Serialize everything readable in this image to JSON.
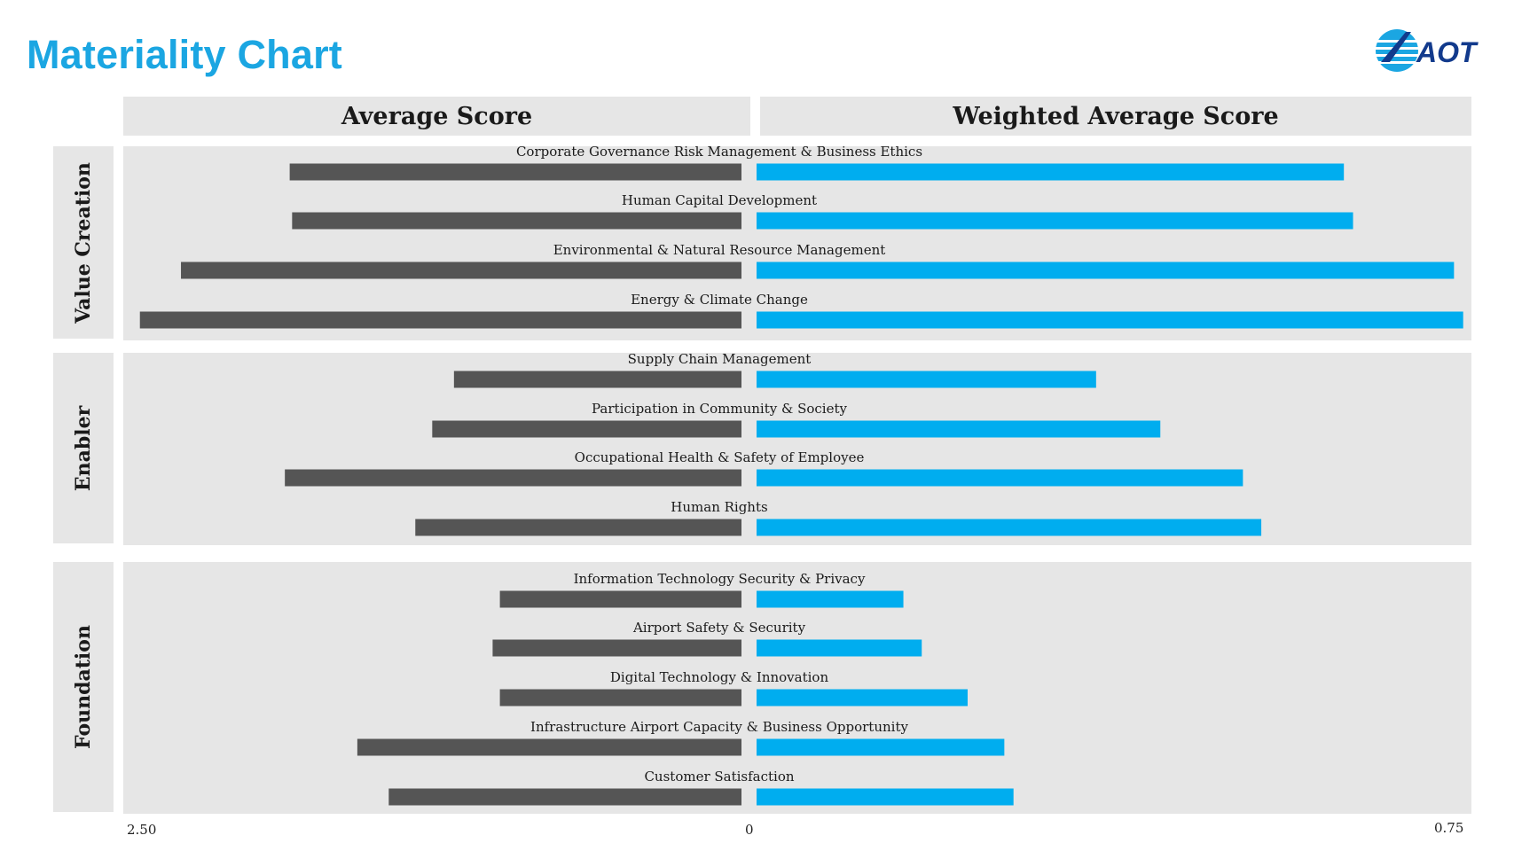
{
  "title": "Materiality Chart",
  "logo_text": "AOT",
  "colors": {
    "title": "#1ba6e2",
    "average_bar": "#555555",
    "weighted_bar": "#00adef",
    "panel_bg": "#e6e6e6"
  },
  "headers": {
    "left": "Average Score",
    "right": "Weighted Average Score"
  },
  "chart_data": {
    "type": "bar",
    "orientation": "horizontal-butterfly",
    "axis_labels": {
      "left_max": "2.50",
      "center": "0",
      "right_max": "0.75"
    },
    "left_range": [
      0,
      2.5
    ],
    "right_range": [
      0,
      0.75
    ],
    "groups": [
      {
        "name": "Value Creation",
        "items": [
          {
            "label": "Corporate Governance Risk Management & Business Ethics",
            "average": 1.87,
            "weighted": 0.64
          },
          {
            "label": "Human Capital Development",
            "average": 1.86,
            "weighted": 0.65
          },
          {
            "label": "Environmental & Natural Resource Management",
            "average": 2.32,
            "weighted": 0.76
          },
          {
            "label": "Energy & Climate Change",
            "average": 2.49,
            "weighted": 0.77
          }
        ]
      },
      {
        "name": "Enabler",
        "items": [
          {
            "label": "Supply Chain Management",
            "average": 1.19,
            "weighted": 0.37
          },
          {
            "label": "Participation in Community & Society",
            "average": 1.28,
            "weighted": 0.44
          },
          {
            "label": "Occupational Health & Safety of Employee",
            "average": 1.89,
            "weighted": 0.53
          },
          {
            "label": "Human Rights",
            "average": 1.35,
            "weighted": 0.55
          }
        ]
      },
      {
        "name": "Foundation",
        "items": [
          {
            "label": "Information Technology Security & Privacy",
            "average": 1.0,
            "weighted": 0.16
          },
          {
            "label": "Airport Safety & Security",
            "average": 1.03,
            "weighted": 0.18
          },
          {
            "label": "Digital Technology & Innovation",
            "average": 1.0,
            "weighted": 0.23
          },
          {
            "label": "Infrastructure Airport Capacity & Business Opportunity",
            "average": 1.59,
            "weighted": 0.27
          },
          {
            "label": "Customer Satisfaction",
            "average": 1.46,
            "weighted": 0.28
          }
        ]
      }
    ]
  }
}
